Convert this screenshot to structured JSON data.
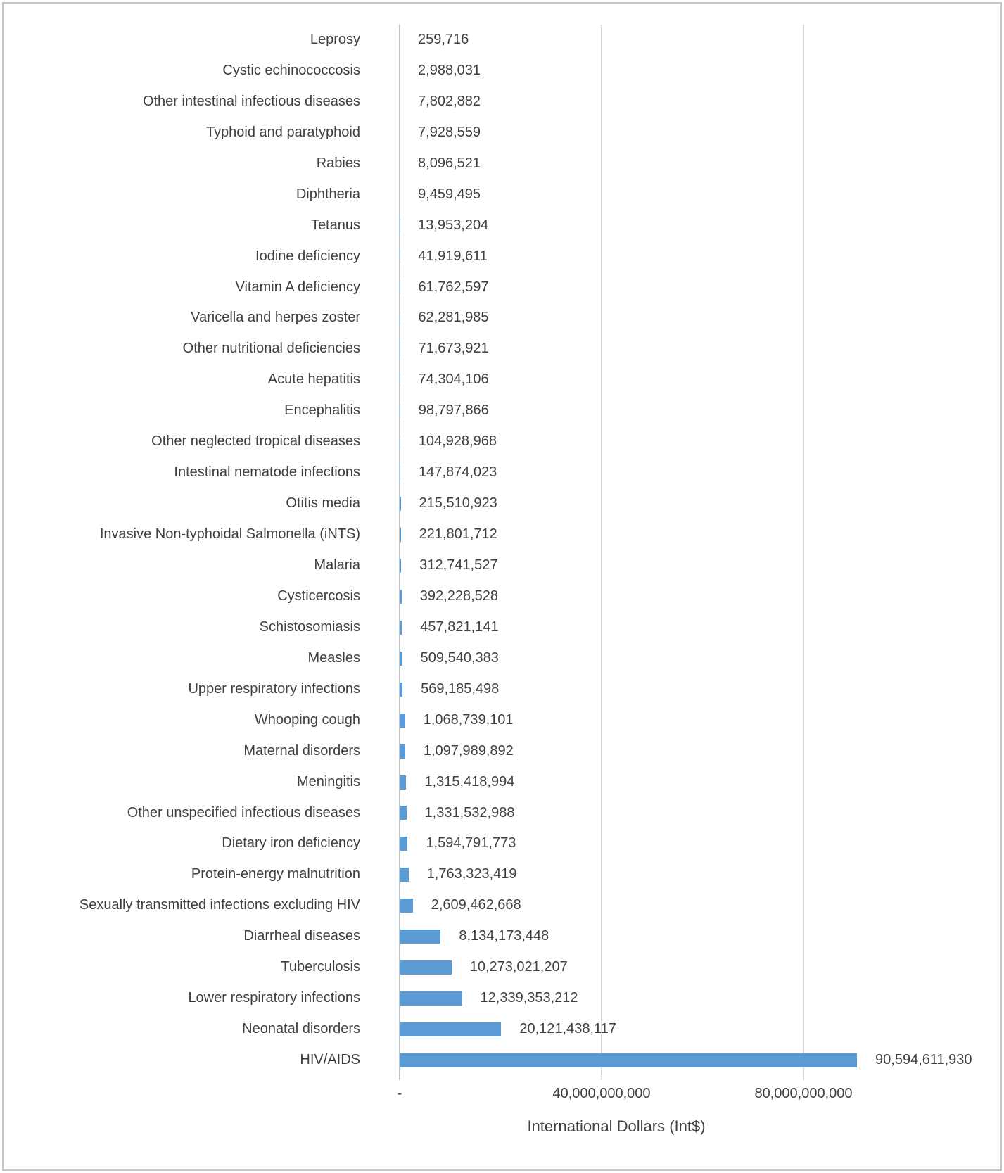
{
  "chart_data": {
    "type": "bar",
    "orientation": "horizontal",
    "title": "",
    "xlabel": "International Dollars (Int$)",
    "ylabel": "",
    "legend": "none",
    "grid": "vertical-major",
    "xlim": [
      0,
      120000000000
    ],
    "x_ticks": [
      {
        "value": 0,
        "label": "-"
      },
      {
        "value": 40000000000,
        "label": "40,000,000,000"
      },
      {
        "value": 80000000000,
        "label": "80,000,000,000"
      }
    ],
    "categories": [
      "Leprosy",
      "Cystic echinococcosis",
      "Other intestinal infectious diseases",
      "Typhoid and paratyphoid",
      "Rabies",
      "Diphtheria",
      "Tetanus",
      "Iodine deficiency",
      "Vitamin A deficiency",
      "Varicella and herpes zoster",
      "Other nutritional deficiencies",
      "Acute hepatitis",
      "Encephalitis",
      "Other neglected tropical diseases",
      "Intestinal nematode infections",
      "Otitis media",
      "Invasive Non-typhoidal Salmonella (iNTS)",
      "Malaria",
      "Cysticercosis",
      "Schistosomiasis",
      "Measles",
      "Upper respiratory infections",
      "Whooping cough",
      "Maternal disorders",
      "Meningitis",
      "Other unspecified infectious diseases",
      "Dietary iron deficiency",
      "Protein-energy malnutrition",
      "Sexually transmitted infections excluding HIV",
      "Diarrheal diseases",
      "Tuberculosis",
      "Lower respiratory infections",
      "Neonatal disorders",
      "HIV/AIDS"
    ],
    "values": [
      259716,
      2988031,
      7802882,
      7928559,
      8096521,
      9459495,
      13953204,
      41919611,
      61762597,
      62281985,
      71673921,
      74304106,
      98797866,
      104928968,
      147874023,
      215510923,
      221801712,
      312741527,
      392228528,
      457821141,
      509540383,
      569185498,
      1068739101,
      1097989892,
      1315418994,
      1331532988,
      1594791773,
      1763323419,
      2609462668,
      8134173448,
      10273021207,
      12339353212,
      20121438117,
      90594611930
    ],
    "value_labels": [
      "259,716",
      "2,988,031",
      "7,802,882",
      "7,928,559",
      "8,096,521",
      "9,459,495",
      "13,953,204",
      "41,919,611",
      "61,762,597",
      "62,281,985",
      "71,673,921",
      "74,304,106",
      "98,797,866",
      "104,928,968",
      "147,874,023",
      "215,510,923",
      "221,801,712",
      "312,741,527",
      "392,228,528",
      "457,821,141",
      "509,540,383",
      "569,185,498",
      "1,068,739,101",
      "1,097,989,892",
      "1,315,418,994",
      "1,331,532,988",
      "1,594,791,773",
      "1,763,323,419",
      "2,609,462,668",
      "8,134,173,448",
      "10,273,021,207",
      "12,339,353,212",
      "20,121,438,117",
      "90,594,611,930"
    ],
    "colors": {
      "bar": "#5B9BD5",
      "text": "#3F3F3F",
      "gridline": "#D9D9D9",
      "axis_line": "#C3C3C3",
      "frame_border": "#C6C6C6",
      "background": "#FFFFFF"
    }
  }
}
